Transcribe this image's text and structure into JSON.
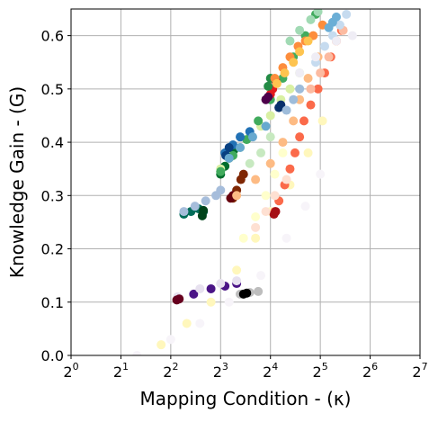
{
  "chart_data": {
    "type": "scatter",
    "title": "",
    "xlabel": "Mapping Condition - (κ)",
    "ylabel": "Knowledge Gain - (G)",
    "x_scale": "log2",
    "xlim": [
      1,
      128
    ],
    "ylim": [
      0.0,
      0.65
    ],
    "grid": true,
    "legend": "none",
    "x_ticks": [
      {
        "value": 1,
        "base": "2",
        "exp": "0"
      },
      {
        "value": 2,
        "base": "2",
        "exp": "1"
      },
      {
        "value": 4,
        "base": "2",
        "exp": "2"
      },
      {
        "value": 8,
        "base": "2",
        "exp": "3"
      },
      {
        "value": 16,
        "base": "2",
        "exp": "4"
      },
      {
        "value": 32,
        "base": "2",
        "exp": "5"
      },
      {
        "value": 64,
        "base": "2",
        "exp": "6"
      },
      {
        "value": 128,
        "base": "2",
        "exp": "7"
      }
    ],
    "y_ticks": [
      {
        "value": 0.0,
        "label": "0.0"
      },
      {
        "value": 0.1,
        "label": "0.1"
      },
      {
        "value": 0.2,
        "label": "0.2"
      },
      {
        "value": 0.3,
        "label": "0.3"
      },
      {
        "value": 0.4,
        "label": "0.4"
      },
      {
        "value": 0.5,
        "label": "0.5"
      },
      {
        "value": 0.6,
        "label": "0.6"
      }
    ],
    "series": [
      {
        "color": "#f7f4f9",
        "points": [
          [
            2.5,
            0.0
          ],
          [
            4.0,
            0.03
          ],
          [
            6.0,
            0.06
          ],
          [
            9.0,
            0.1
          ],
          [
            14.0,
            0.15
          ],
          [
            20.0,
            0.22
          ],
          [
            26.0,
            0.28
          ],
          [
            32.0,
            0.34
          ]
        ]
      },
      {
        "color": "#fff7bc",
        "points": [
          [
            3.5,
            0.02
          ],
          [
            5.0,
            0.06
          ],
          [
            7.0,
            0.1
          ],
          [
            10.0,
            0.16
          ],
          [
            13.0,
            0.22
          ],
          [
            16.0,
            0.27
          ],
          [
            21.0,
            0.32
          ],
          [
            27.0,
            0.38
          ],
          [
            33.0,
            0.44
          ]
        ]
      },
      {
        "color": "#4a1486",
        "points": [
          [
            4.4,
            0.106
          ],
          [
            5.5,
            0.115
          ],
          [
            7.0,
            0.125
          ],
          [
            8.5,
            0.13
          ],
          [
            10.0,
            0.135
          ]
        ]
      },
      {
        "color": "#e7e1ef",
        "points": [
          [
            4.4,
            0.11
          ],
          [
            6.0,
            0.125
          ],
          [
            8.0,
            0.135
          ],
          [
            10.0,
            0.14
          ]
        ]
      },
      {
        "color": "#67001f",
        "points": [
          [
            4.35,
            0.104
          ],
          [
            4.5,
            0.106
          ]
        ]
      },
      {
        "color": "#bdbdbd",
        "points": [
          [
            10.5,
            0.115
          ],
          [
            12.0,
            0.118
          ],
          [
            13.5,
            0.12
          ]
        ]
      },
      {
        "color": "#000000",
        "points": [
          [
            11.0,
            0.115
          ],
          [
            11.5,
            0.117
          ]
        ]
      },
      {
        "color": "#016c59",
        "points": [
          [
            4.8,
            0.265
          ],
          [
            5.3,
            0.27
          ],
          [
            5.9,
            0.275
          ],
          [
            6.3,
            0.27
          ]
        ]
      },
      {
        "color": "#a6bddb",
        "points": [
          [
            4.8,
            0.27
          ],
          [
            5.6,
            0.28
          ],
          [
            6.5,
            0.29
          ],
          [
            7.5,
            0.3
          ],
          [
            8.0,
            0.31
          ]
        ]
      },
      {
        "color": "#00441b",
        "points": [
          [
            6.2,
            0.262
          ],
          [
            6.3,
            0.272
          ]
        ]
      },
      {
        "color": "#006d2c",
        "points": [
          [
            8.0,
            0.34
          ],
          [
            8.5,
            0.355
          ],
          [
            9.0,
            0.37
          ],
          [
            9.6,
            0.385
          ]
        ]
      },
      {
        "color": "#d9f0a3",
        "points": [
          [
            8.0,
            0.35
          ],
          [
            9.0,
            0.37
          ],
          [
            10.5,
            0.39
          ],
          [
            12.0,
            0.41
          ],
          [
            14.0,
            0.43
          ],
          [
            16.0,
            0.45
          ],
          [
            18.5,
            0.48
          ],
          [
            21.0,
            0.5
          ],
          [
            24.0,
            0.53
          ]
        ]
      },
      {
        "color": "#41ab5d",
        "points": [
          [
            8.0,
            0.345
          ],
          [
            9.5,
            0.375
          ],
          [
            11.5,
            0.405
          ],
          [
            13.5,
            0.44
          ],
          [
            16.0,
            0.48
          ],
          [
            19.0,
            0.52
          ],
          [
            22.0,
            0.56
          ],
          [
            26.0,
            0.6
          ],
          [
            30.0,
            0.64
          ]
        ]
      },
      {
        "color": "#a1dab4",
        "points": [
          [
            21.0,
            0.59
          ],
          [
            24.0,
            0.61
          ],
          [
            28.0,
            0.63
          ],
          [
            31.0,
            0.645
          ]
        ]
      },
      {
        "color": "#2171b5",
        "points": [
          [
            8.5,
            0.38
          ],
          [
            9.5,
            0.395
          ],
          [
            10.5,
            0.41
          ],
          [
            12.0,
            0.42
          ]
        ]
      },
      {
        "color": "#084081",
        "points": [
          [
            8.6,
            0.375
          ],
          [
            9.0,
            0.39
          ]
        ]
      },
      {
        "color": "#67a9cf",
        "points": [
          [
            9.0,
            0.37
          ],
          [
            10.5,
            0.39
          ],
          [
            12.5,
            0.41
          ],
          [
            15.0,
            0.43
          ]
        ]
      },
      {
        "color": "#7f2704",
        "points": [
          [
            9.5,
            0.295
          ],
          [
            10.0,
            0.31
          ],
          [
            10.6,
            0.33
          ],
          [
            11.0,
            0.34
          ]
        ]
      },
      {
        "color": "#67000d",
        "points": [
          [
            9.2,
            0.295
          ],
          [
            9.5,
            0.3
          ]
        ]
      },
      {
        "color": "#fdbb84",
        "points": [
          [
            10.0,
            0.3
          ],
          [
            13.0,
            0.33
          ],
          [
            16.0,
            0.36
          ],
          [
            19.0,
            0.4
          ],
          [
            22.0,
            0.44
          ],
          [
            24.0,
            0.48
          ],
          [
            27.0,
            0.52
          ],
          [
            31.0,
            0.56
          ]
        ]
      },
      {
        "color": "#ffffcc",
        "points": [
          [
            11.0,
            0.22
          ],
          [
            13.0,
            0.26
          ],
          [
            15.0,
            0.3
          ],
          [
            17.0,
            0.34
          ],
          [
            19.0,
            0.38
          ]
        ]
      },
      {
        "color": "#c7e9c0",
        "points": [
          [
            12.0,
            0.36
          ],
          [
            14.0,
            0.38
          ],
          [
            16.0,
            0.41
          ]
        ]
      },
      {
        "color": "#fb6a4a",
        "points": [
          [
            17.0,
            0.27
          ],
          [
            18.0,
            0.29
          ],
          [
            19.5,
            0.32
          ],
          [
            21.0,
            0.35
          ],
          [
            22.5,
            0.38
          ],
          [
            24.0,
            0.41
          ],
          [
            25.5,
            0.44
          ],
          [
            28.0,
            0.47
          ],
          [
            31.0,
            0.5
          ],
          [
            34.0,
            0.53
          ],
          [
            37.0,
            0.56
          ],
          [
            40.0,
            0.59
          ],
          [
            43.0,
            0.61
          ]
        ]
      },
      {
        "color": "#a50f15",
        "points": [
          [
            16.8,
            0.265
          ],
          [
            17.2,
            0.27
          ]
        ]
      },
      {
        "color": "#fcbba1",
        "points": [
          [
            28.0,
            0.5
          ],
          [
            32.0,
            0.53
          ],
          [
            36.0,
            0.56
          ],
          [
            40.0,
            0.59
          ],
          [
            44.0,
            0.61
          ]
        ]
      },
      {
        "color": "#e31a1c",
        "points": [
          [
            16.0,
            0.49
          ],
          [
            16.5,
            0.5
          ],
          [
            17.2,
            0.515
          ]
        ]
      },
      {
        "color": "#238b45",
        "points": [
          [
            15.5,
            0.505
          ],
          [
            16.0,
            0.52
          ]
        ]
      },
      {
        "color": "#08306b",
        "points": [
          [
            18.0,
            0.465
          ],
          [
            18.5,
            0.47
          ]
        ]
      },
      {
        "color": "#4d004b",
        "points": [
          [
            15.0,
            0.48
          ],
          [
            15.5,
            0.485
          ]
        ]
      },
      {
        "color": "#fd8d3c",
        "points": [
          [
            17.0,
            0.52
          ],
          [
            19.0,
            0.54
          ],
          [
            21.0,
            0.56
          ],
          [
            23.5,
            0.58
          ],
          [
            26.0,
            0.59
          ],
          [
            29.0,
            0.6
          ],
          [
            33.0,
            0.62
          ]
        ]
      },
      {
        "color": "#fec44f",
        "points": [
          [
            17.5,
            0.51
          ],
          [
            19.5,
            0.53
          ],
          [
            22.0,
            0.55
          ],
          [
            24.0,
            0.57
          ],
          [
            27.0,
            0.59
          ]
        ]
      },
      {
        "color": "#9ebcda",
        "points": [
          [
            20.0,
            0.46
          ],
          [
            22.0,
            0.48
          ],
          [
            24.0,
            0.5
          ]
        ]
      },
      {
        "color": "#c6dbef",
        "points": [
          [
            30.0,
            0.55
          ],
          [
            34.0,
            0.58
          ],
          [
            38.0,
            0.6
          ],
          [
            42.0,
            0.62
          ],
          [
            46.0,
            0.64
          ]
        ]
      },
      {
        "color": "#6baed6",
        "points": [
          [
            36.0,
            0.615
          ],
          [
            38.0,
            0.625
          ],
          [
            40.0,
            0.635
          ]
        ]
      },
      {
        "color": "#efedf5",
        "points": [
          [
            24.0,
            0.53
          ],
          [
            30.0,
            0.56
          ],
          [
            40.0,
            0.59
          ],
          [
            50.0,
            0.6
          ]
        ]
      },
      {
        "color": "#fee0d2",
        "points": [
          [
            13.0,
            0.24
          ],
          [
            15.0,
            0.27
          ],
          [
            17.0,
            0.3
          ],
          [
            20.0,
            0.33
          ]
        ]
      }
    ]
  }
}
